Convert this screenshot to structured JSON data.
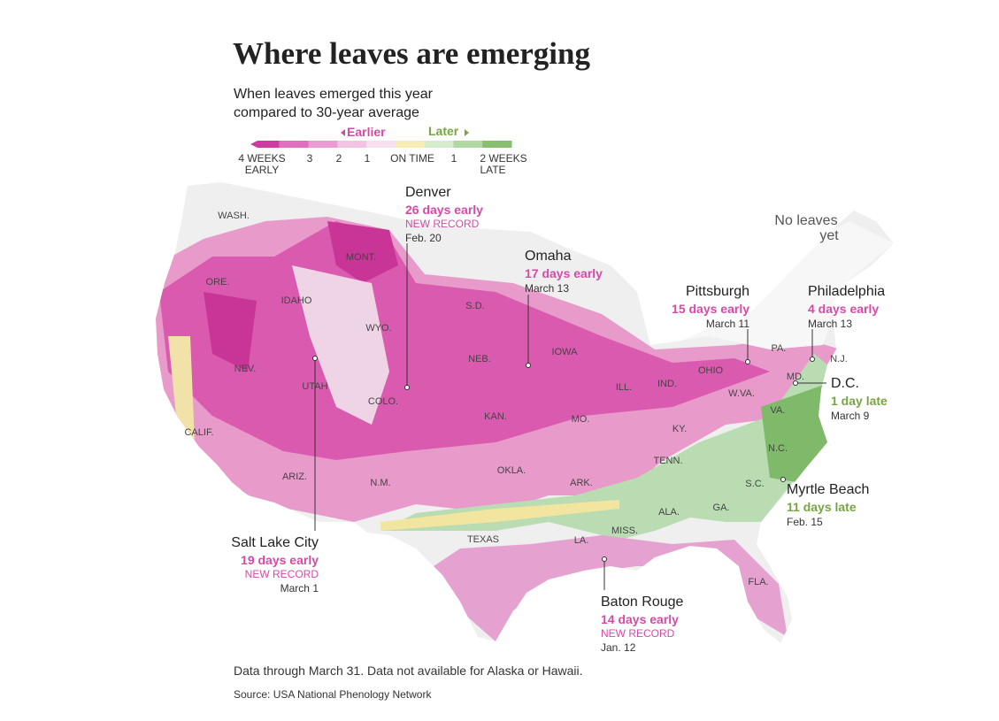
{
  "title": "Where leaves are emerging",
  "subtitle": [
    "When leaves emerged this year",
    "compared to 30-year average"
  ],
  "legend": {
    "earlier": "Earlier",
    "later": "Later",
    "colors": [
      "#cf3a9e",
      "#e070bd",
      "#eb9ad2",
      "#f3c3e4",
      "#f7dff0",
      "#f7ecb4",
      "#d6ebcc",
      "#b1d8a3",
      "#86c06f"
    ],
    "labels": [
      [
        "4 WEEKS",
        "EARLY"
      ],
      [
        "3"
      ],
      [
        "2"
      ],
      [
        "1"
      ],
      [
        "ON TIME"
      ],
      [
        "1"
      ],
      [
        "2 WEEKS",
        "LATE"
      ]
    ]
  },
  "trend_colors": {
    "early": "#d54aa6",
    "late": "#78a446"
  },
  "states": [
    "WASH.",
    "ORE.",
    "IDAHO",
    "MONT.",
    "WYO.",
    "NEV.",
    "UTAH",
    "CALIF.",
    "ARIZ.",
    "COLO.",
    "N.M.",
    "S.D.",
    "NEB.",
    "KAN.",
    "OKLA.",
    "TEXAS",
    "IOWA",
    "MO.",
    "ARK.",
    "LA.",
    "MISS.",
    "ILL.",
    "IND.",
    "OHIO",
    "KY.",
    "TENN.",
    "ALA.",
    "GA.",
    "FLA.",
    "W.VA.",
    "VA.",
    "N.C.",
    "S.C.",
    "PA.",
    "N.J.",
    "MD."
  ],
  "no_data": [
    "No leaves",
    "yet"
  ],
  "cities": [
    {
      "name": "Denver",
      "change": "26 days early",
      "note": "NEW RECORD",
      "date": "Feb. 20",
      "trend": "early"
    },
    {
      "name": "Omaha",
      "change": "17 days early",
      "date": "March 13",
      "trend": "early"
    },
    {
      "name": "Pittsburgh",
      "change": "15 days early",
      "date": "March 11",
      "trend": "early"
    },
    {
      "name": "Philadelphia",
      "change": "4 days early",
      "date": "March 13",
      "trend": "early"
    },
    {
      "name": "D.C.",
      "change": "1 day late",
      "date": "March 9",
      "trend": "late"
    },
    {
      "name": "Myrtle Beach",
      "change": "11 days late",
      "date": "Feb. 15",
      "trend": "late"
    },
    {
      "name": "Salt Lake City",
      "change": "19 days early",
      "note": "NEW RECORD",
      "date": "March 1",
      "trend": "early"
    },
    {
      "name": "Baton Rouge",
      "change": "14 days early",
      "note": "NEW RECORD",
      "date": "Jan. 12",
      "trend": "early"
    }
  ],
  "footnote": "Data through March 31. Data not available for Alaska or Hawaii.",
  "source": "Source: USA National Phenology Network"
}
